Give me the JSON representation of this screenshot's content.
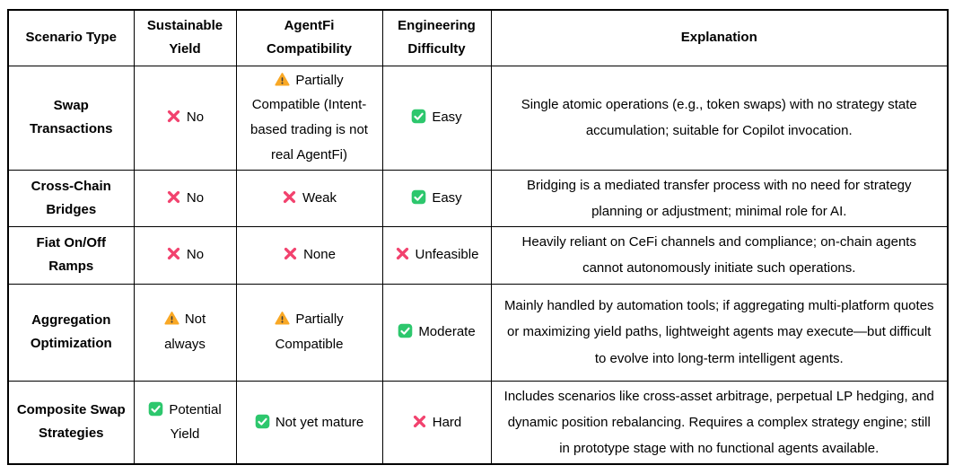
{
  "header": {
    "columns": [
      "Scenario Type",
      "Sustainable Yield",
      "AgentFi Compatibility",
      "Engineering Difficulty",
      "Explanation"
    ]
  },
  "icons": {
    "cross": {
      "name": "cross-icon",
      "color": "#F2426E"
    },
    "warning": {
      "name": "warning-icon",
      "color": "#F9A825"
    },
    "check": {
      "name": "check-icon",
      "color": "#2DC76D"
    }
  },
  "rows": [
    {
      "scenario": "Swap Transactions",
      "sustainable_yield": {
        "icon": "cross",
        "label": "No"
      },
      "agentfi_compatibility": {
        "icon": "warning",
        "label": "Partially Compatible (Intent-based trading is not real AgentFi)"
      },
      "engineering_difficulty": {
        "icon": "check",
        "label": "Easy"
      },
      "explanation": "Single atomic operations (e.g., token swaps) with no strategy state accumulation; suitable for Copilot invocation."
    },
    {
      "scenario": "Cross-Chain Bridges",
      "sustainable_yield": {
        "icon": "cross",
        "label": "No"
      },
      "agentfi_compatibility": {
        "icon": "cross",
        "label": "Weak"
      },
      "engineering_difficulty": {
        "icon": "check",
        "label": "Easy"
      },
      "explanation": "Bridging is a mediated transfer process with no need for strategy planning or adjustment; minimal role for AI."
    },
    {
      "scenario": "Fiat On/Off Ramps",
      "sustainable_yield": {
        "icon": "cross",
        "label": "No"
      },
      "agentfi_compatibility": {
        "icon": "cross",
        "label": "None"
      },
      "engineering_difficulty": {
        "icon": "cross",
        "label": "Unfeasible"
      },
      "explanation": "Heavily reliant on CeFi channels and compliance; on-chain agents cannot autonomously initiate such operations."
    },
    {
      "scenario": "Aggregation Optimization",
      "sustainable_yield": {
        "icon": "warning",
        "label": "Not always"
      },
      "agentfi_compatibility": {
        "icon": "warning",
        "label": "Partially Compatible"
      },
      "engineering_difficulty": {
        "icon": "check",
        "label": "Moderate"
      },
      "explanation": "Mainly handled by automation tools; if aggregating multi-platform quotes or maximizing yield paths, lightweight agents may execute—but difficult to evolve into long-term intelligent agents."
    },
    {
      "scenario": "Composite Swap Strategies",
      "sustainable_yield": {
        "icon": "check",
        "label": "Potential Yield"
      },
      "agentfi_compatibility": {
        "icon": "check",
        "label": "Not yet mature"
      },
      "engineering_difficulty": {
        "icon": "cross",
        "label": "Hard"
      },
      "explanation": "Includes scenarios like cross-asset arbitrage, perpetual LP hedging, and dynamic position rebalancing. Requires a complex strategy engine; still in prototype stage with no functional agents available."
    }
  ]
}
